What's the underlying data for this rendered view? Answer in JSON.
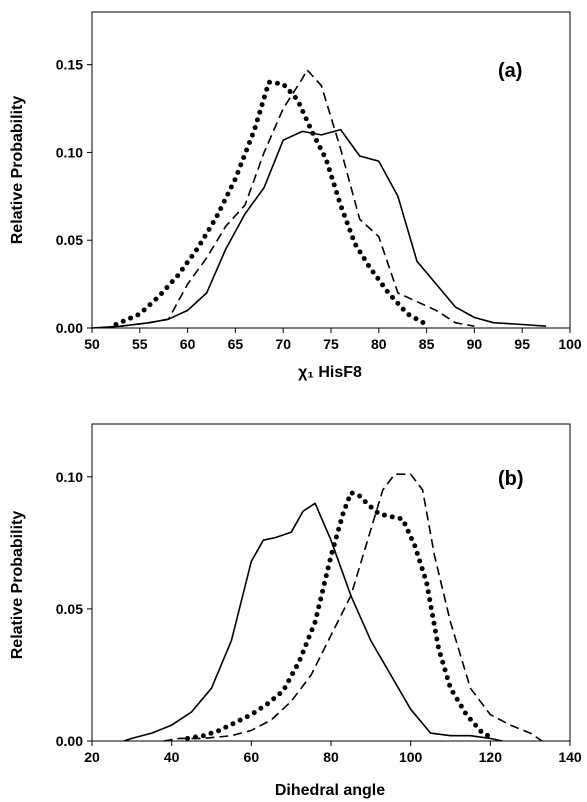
{
  "chart_data": [
    {
      "type": "line",
      "panel_label": "(a)",
      "xlabel": "χ₁ HisF8",
      "ylabel": "Relative Probability",
      "xlim": [
        50,
        100
      ],
      "ylim": [
        0,
        0.18
      ],
      "xticks": [
        "50",
        "55",
        "60",
        "65",
        "70",
        "75",
        "80",
        "85",
        "90",
        "95",
        "100"
      ],
      "yticks": [
        "0.00",
        "0.05",
        "0.10",
        "0.15"
      ],
      "grid": false,
      "series": [
        {
          "style": "dotted",
          "x": [
            52.5,
            55,
            57,
            59,
            61,
            63,
            65,
            67,
            68.5,
            70,
            71.5,
            73,
            74.5,
            76,
            77.5,
            79,
            81,
            83,
            85
          ],
          "y": [
            0.002,
            0.008,
            0.018,
            0.03,
            0.045,
            0.063,
            0.085,
            0.113,
            0.14,
            0.139,
            0.13,
            0.112,
            0.096,
            0.07,
            0.048,
            0.035,
            0.02,
            0.008,
            0.002
          ]
        },
        {
          "style": "dashed",
          "x": [
            53,
            56,
            58,
            60,
            62,
            64,
            66,
            68,
            70,
            72,
            72.5,
            74,
            76,
            78,
            80,
            82,
            84,
            86,
            88,
            90
          ],
          "y": [
            0.001,
            0.003,
            0.005,
            0.025,
            0.04,
            0.058,
            0.07,
            0.1,
            0.125,
            0.142,
            0.147,
            0.138,
            0.102,
            0.062,
            0.052,
            0.02,
            0.015,
            0.01,
            0.003,
            0.001
          ]
        },
        {
          "style": "solid",
          "x": [
            50,
            53,
            56,
            58,
            60,
            62,
            64,
            66,
            68,
            70,
            72,
            74,
            76,
            78,
            80,
            82,
            84,
            86,
            88,
            90,
            92,
            95,
            97.5
          ],
          "y": [
            0,
            0.001,
            0.003,
            0.005,
            0.01,
            0.02,
            0.045,
            0.065,
            0.08,
            0.107,
            0.112,
            0.11,
            0.113,
            0.098,
            0.095,
            0.075,
            0.038,
            0.025,
            0.012,
            0.006,
            0.003,
            0.002,
            0.001
          ]
        }
      ]
    },
    {
      "type": "line",
      "panel_label": "(b)",
      "xlabel": "Dihedral angle",
      "ylabel": "Relative Probability",
      "xlim": [
        20,
        140
      ],
      "ylim": [
        0,
        0.12
      ],
      "xticks": [
        "20",
        "40",
        "60",
        "80",
        "100",
        "120",
        "140"
      ],
      "yticks": [
        "0.00",
        "0.05",
        "0.10"
      ],
      "grid": false,
      "series": [
        {
          "style": "solid",
          "x": [
            28,
            30,
            35,
            40,
            45,
            50,
            55,
            60,
            63,
            66,
            70,
            73,
            76,
            80,
            85,
            90,
            95,
            100,
            105,
            110,
            115,
            120,
            123
          ],
          "y": [
            0,
            0.001,
            0.003,
            0.006,
            0.011,
            0.02,
            0.038,
            0.068,
            0.076,
            0.077,
            0.079,
            0.087,
            0.09,
            0.076,
            0.055,
            0.038,
            0.025,
            0.012,
            0.003,
            0.002,
            0.002,
            0.001,
            0
          ]
        },
        {
          "style": "dotted",
          "x": [
            44,
            48,
            52,
            56,
            60,
            64,
            68,
            72,
            76,
            80,
            83,
            85,
            87,
            89,
            92,
            95,
            98,
            101,
            104,
            107,
            110,
            114,
            118,
            121
          ],
          "y": [
            0.001,
            0.002,
            0.004,
            0.007,
            0.01,
            0.014,
            0.019,
            0.03,
            0.045,
            0.07,
            0.086,
            0.094,
            0.093,
            0.09,
            0.086,
            0.085,
            0.084,
            0.074,
            0.06,
            0.035,
            0.02,
            0.01,
            0.003,
            0.001
          ]
        },
        {
          "style": "dashed",
          "x": [
            38,
            42,
            48,
            55,
            60,
            65,
            70,
            75,
            80,
            85,
            90,
            93,
            96,
            100,
            103,
            106,
            110,
            115,
            120,
            125,
            130,
            133
          ],
          "y": [
            0,
            0.001,
            0.001,
            0.002,
            0.004,
            0.008,
            0.015,
            0.025,
            0.04,
            0.055,
            0.08,
            0.095,
            0.101,
            0.101,
            0.095,
            0.07,
            0.045,
            0.02,
            0.01,
            0.006,
            0.003,
            0
          ]
        }
      ]
    }
  ]
}
